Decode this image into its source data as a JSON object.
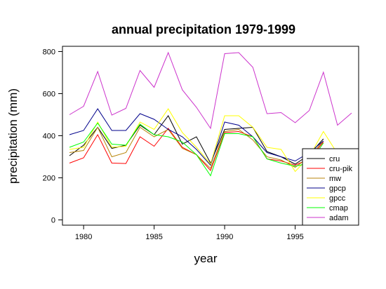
{
  "chart_data": {
    "type": "line",
    "title": "annual precipitation 1979-1999",
    "xlabel": "year",
    "ylabel": "precipitation (mm)",
    "x_ticks": [
      1980,
      1985,
      1990,
      1995
    ],
    "y_ticks": [
      0,
      200,
      400,
      600,
      800
    ],
    "xlim": [
      1978.5,
      1999.5
    ],
    "ylim": [
      -25,
      825
    ],
    "legend_position": "bottom-right",
    "grid": false,
    "series": [
      {
        "name": "cru",
        "color": "#000000",
        "x": [
          1979,
          1980,
          1981,
          1982,
          1983,
          1984,
          1985,
          1986,
          1987,
          1988,
          1989,
          1990,
          1991,
          1992,
          1993,
          1994,
          1995,
          1996,
          1997
        ],
        "y": [
          305,
          355,
          440,
          340,
          355,
          450,
          405,
          495,
          360,
          395,
          270,
          430,
          435,
          440,
          325,
          300,
          265,
          310,
          385
        ]
      },
      {
        "name": "cru-pik",
        "color": "#ff0000",
        "x": [
          1979,
          1980,
          1981,
          1982,
          1983,
          1984,
          1985,
          1986,
          1987,
          1988,
          1989,
          1990,
          1991,
          1992,
          1993,
          1994,
          1995,
          1996,
          1997
        ],
        "y": [
          270,
          295,
          405,
          270,
          268,
          395,
          350,
          435,
          345,
          310,
          235,
          415,
          420,
          395,
          290,
          280,
          260,
          290,
          370
        ]
      },
      {
        "name": "mw",
        "color": "#b8860b",
        "x": [
          1979,
          1980,
          1981,
          1982,
          1983,
          1984,
          1985,
          1986,
          1987,
          1988,
          1989,
          1990,
          1991,
          1992,
          1993,
          1994,
          1995,
          1996,
          1997
        ],
        "y": [
          320,
          330,
          440,
          300,
          320,
          440,
          395,
          430,
          340,
          310,
          245,
          420,
          430,
          380,
          300,
          285,
          250,
          300,
          375
        ]
      },
      {
        "name": "gpcp",
        "color": "#00008b",
        "x": [
          1979,
          1980,
          1981,
          1982,
          1983,
          1984,
          1985,
          1986,
          1987,
          1988,
          1989,
          1990,
          1991,
          1992,
          1993,
          1994,
          1995,
          1996,
          1997
        ],
        "y": [
          405,
          425,
          528,
          425,
          425,
          505,
          478,
          430,
          395,
          335,
          260,
          465,
          450,
          395,
          320,
          300,
          280,
          320,
          375
        ]
      },
      {
        "name": "gpcc",
        "color": "#ffff00",
        "x": [
          1979,
          1980,
          1981,
          1982,
          1983,
          1984,
          1985,
          1986,
          1987,
          1988,
          1989,
          1990,
          1991,
          1992,
          1993,
          1994,
          1995,
          1996,
          1997,
          1998
        ],
        "y": [
          335,
          345,
          465,
          345,
          350,
          465,
          430,
          528,
          415,
          345,
          265,
          495,
          495,
          440,
          345,
          335,
          230,
          300,
          420,
          315
        ]
      },
      {
        "name": "cmap",
        "color": "#00ff00",
        "x": [
          1979,
          1980,
          1981,
          1982,
          1983,
          1984,
          1985,
          1986,
          1987,
          1988,
          1989,
          1990,
          1991,
          1992,
          1993,
          1994,
          1995,
          1996,
          1997
        ],
        "y": [
          345,
          370,
          460,
          360,
          355,
          455,
          405,
          395,
          370,
          310,
          210,
          410,
          410,
          395,
          290,
          270,
          255,
          270,
          365
        ]
      },
      {
        "name": "adam",
        "color": "#cc33cc",
        "x": [
          1979,
          1980,
          1981,
          1982,
          1983,
          1984,
          1985,
          1986,
          1987,
          1988,
          1989,
          1990,
          1991,
          1992,
          1993,
          1994,
          1995,
          1996,
          1997,
          1998,
          1999
        ],
        "y": [
          500,
          540,
          705,
          498,
          530,
          710,
          630,
          795,
          618,
          535,
          435,
          790,
          795,
          725,
          505,
          510,
          462,
          520,
          702,
          450,
          508
        ]
      }
    ]
  }
}
